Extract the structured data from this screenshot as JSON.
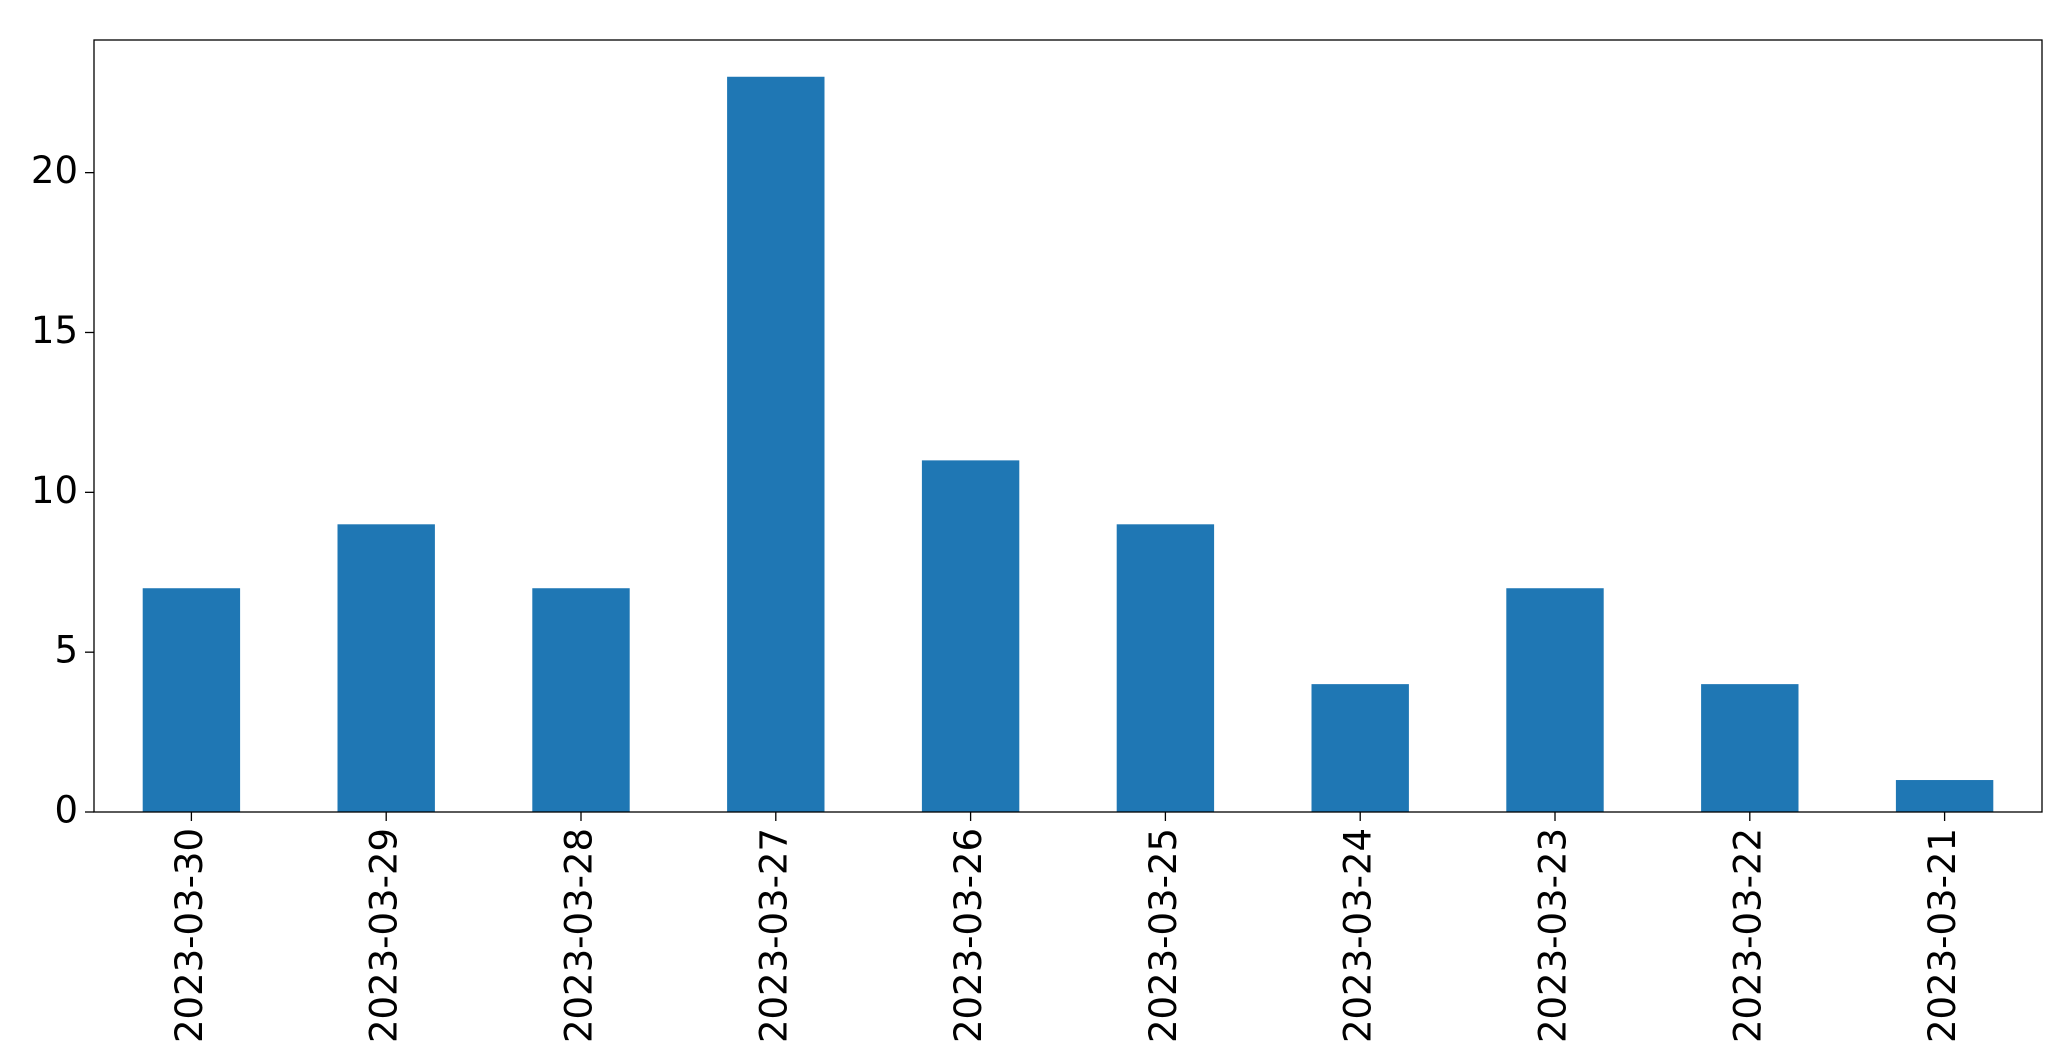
{
  "chart_data": {
    "type": "bar",
    "categories": [
      "2023-03-30",
      "2023-03-29",
      "2023-03-28",
      "2023-03-27",
      "2023-03-26",
      "2023-03-25",
      "2023-03-24",
      "2023-03-23",
      "2023-03-22",
      "2023-03-21"
    ],
    "values": [
      7,
      9,
      7,
      23,
      11,
      9,
      4,
      7,
      4,
      1
    ],
    "color": "#1f77b4",
    "ylim": [
      0,
      24.15
    ],
    "yticks": [
      0,
      5,
      10,
      15,
      20
    ],
    "grid": false
  }
}
